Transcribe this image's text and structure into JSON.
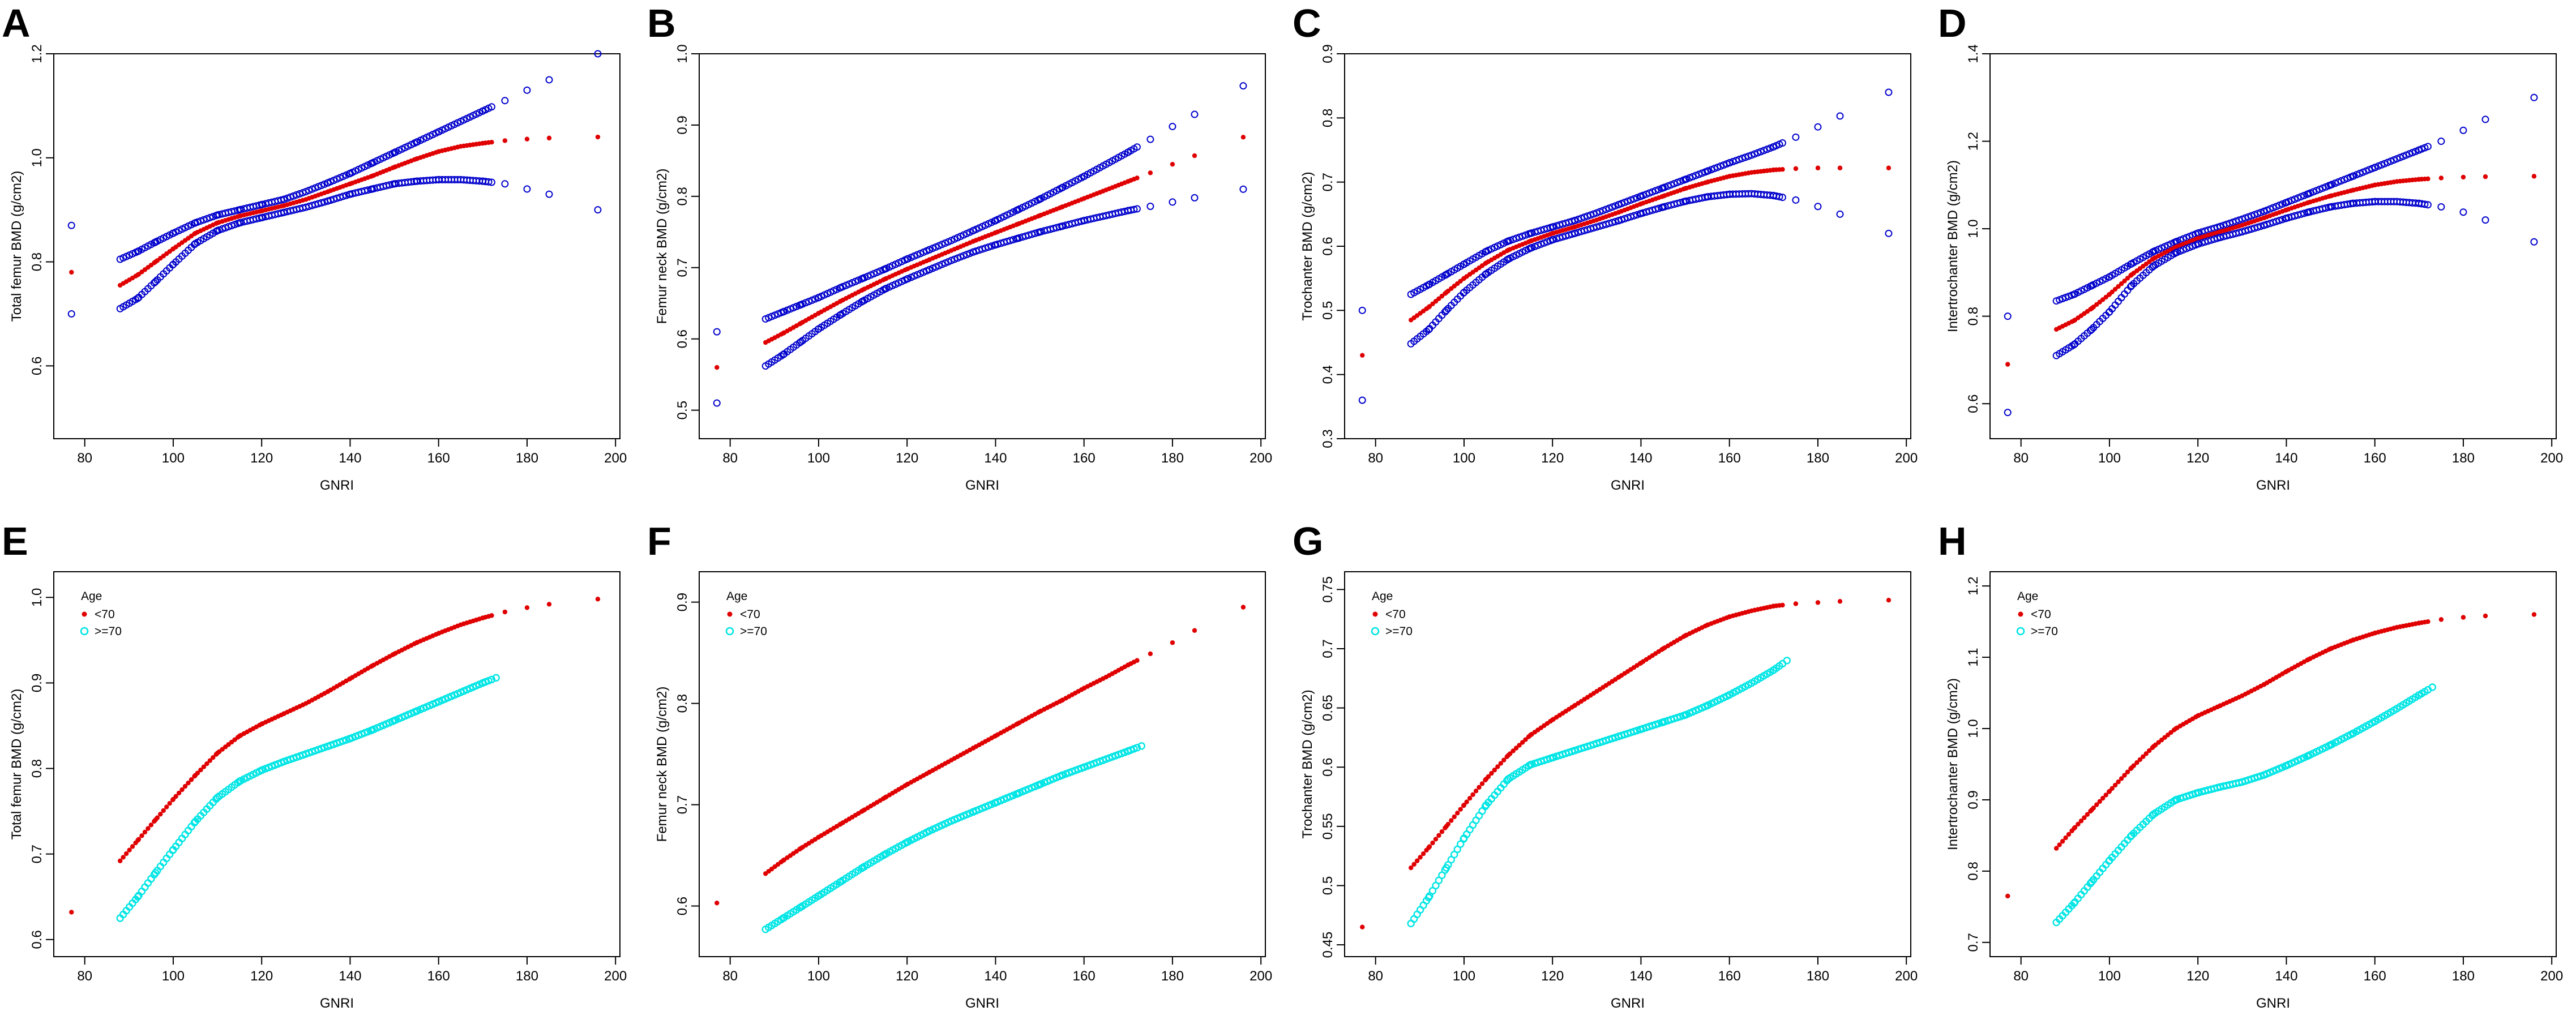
{
  "figure": {
    "panels": [
      "A",
      "B",
      "C",
      "D",
      "E",
      "F",
      "G",
      "H"
    ]
  },
  "colors": {
    "blue": "#0000cc",
    "red": "#e00000",
    "cyan": "#00e5e5",
    "axis": "#000000"
  },
  "chart_data": [
    {
      "panel": "A",
      "type": "scatter",
      "xlabel": "GNRI",
      "ylabel": "Total femur BMD (g/cm2)",
      "xlim": [
        73,
        201
      ],
      "ylim": [
        0.46,
        1.2
      ],
      "xticks": [
        80,
        100,
        120,
        140,
        160,
        180,
        200
      ],
      "yticks": [
        0.6,
        0.8,
        1.0,
        1.2
      ],
      "x": [
        77,
        88,
        92,
        96,
        100,
        105,
        110,
        115,
        120,
        125,
        130,
        135,
        140,
        145,
        150,
        155,
        160,
        165,
        170,
        175,
        180,
        185,
        196
      ],
      "series": [
        {
          "name": "upper",
          "style": "blue-open",
          "values": [
            0.87,
            0.805,
            0.82,
            0.838,
            0.855,
            0.875,
            0.89,
            0.9,
            0.91,
            0.92,
            0.935,
            0.952,
            0.97,
            0.99,
            1.01,
            1.03,
            1.05,
            1.07,
            1.09,
            1.11,
            1.13,
            1.15,
            1.2
          ]
        },
        {
          "name": "fit",
          "style": "red-dot",
          "values": [
            0.78,
            0.755,
            0.775,
            0.8,
            0.825,
            0.855,
            0.875,
            0.888,
            0.898,
            0.908,
            0.92,
            0.935,
            0.95,
            0.965,
            0.982,
            0.998,
            1.012,
            1.022,
            1.028,
            1.033,
            1.036,
            1.038,
            1.04
          ]
        },
        {
          "name": "lower",
          "style": "blue-open",
          "values": [
            0.7,
            0.71,
            0.73,
            0.762,
            0.795,
            0.835,
            0.86,
            0.875,
            0.885,
            0.895,
            0.905,
            0.917,
            0.93,
            0.94,
            0.95,
            0.955,
            0.958,
            0.958,
            0.955,
            0.95,
            0.94,
            0.93,
            0.9
          ]
        }
      ]
    },
    {
      "panel": "B",
      "type": "scatter",
      "xlabel": "GNRI",
      "ylabel": "Femur neck BMD (g/cm2)",
      "xlim": [
        73,
        201
      ],
      "ylim": [
        0.46,
        1.0
      ],
      "xticks": [
        80,
        100,
        120,
        140,
        160,
        180,
        200
      ],
      "yticks": [
        0.5,
        0.6,
        0.7,
        0.8,
        0.9,
        1.0
      ],
      "x": [
        77,
        88,
        92,
        96,
        100,
        105,
        110,
        115,
        120,
        125,
        130,
        135,
        140,
        145,
        150,
        155,
        160,
        165,
        170,
        175,
        180,
        185,
        196
      ],
      "series": [
        {
          "name": "upper",
          "style": "blue-open",
          "values": [
            0.61,
            0.628,
            0.638,
            0.648,
            0.658,
            0.672,
            0.685,
            0.698,
            0.712,
            0.725,
            0.738,
            0.752,
            0.766,
            0.781,
            0.796,
            0.812,
            0.828,
            0.845,
            0.862,
            0.88,
            0.898,
            0.915,
            0.955
          ]
        },
        {
          "name": "fit",
          "style": "red-dot",
          "values": [
            0.56,
            0.595,
            0.608,
            0.622,
            0.636,
            0.653,
            0.669,
            0.684,
            0.698,
            0.711,
            0.724,
            0.737,
            0.749,
            0.761,
            0.773,
            0.785,
            0.797,
            0.809,
            0.821,
            0.833,
            0.845,
            0.857,
            0.883
          ]
        },
        {
          "name": "lower",
          "style": "blue-open",
          "values": [
            0.51,
            0.562,
            0.578,
            0.596,
            0.614,
            0.634,
            0.653,
            0.67,
            0.684,
            0.697,
            0.71,
            0.722,
            0.732,
            0.741,
            0.75,
            0.758,
            0.766,
            0.773,
            0.78,
            0.786,
            0.792,
            0.798,
            0.81
          ]
        }
      ]
    },
    {
      "panel": "C",
      "type": "scatter",
      "xlabel": "GNRI",
      "ylabel": "Trochanter BMD (g/cm2)",
      "xlim": [
        73,
        201
      ],
      "ylim": [
        0.3,
        0.9
      ],
      "xticks": [
        80,
        100,
        120,
        140,
        160,
        180,
        200
      ],
      "yticks": [
        0.3,
        0.4,
        0.5,
        0.6,
        0.7,
        0.8,
        0.9
      ],
      "x": [
        77,
        88,
        92,
        96,
        100,
        105,
        110,
        115,
        120,
        125,
        130,
        135,
        140,
        145,
        150,
        155,
        160,
        165,
        170,
        175,
        180,
        185,
        196
      ],
      "series": [
        {
          "name": "upper",
          "style": "blue-open",
          "values": [
            0.5,
            0.525,
            0.54,
            0.556,
            0.572,
            0.592,
            0.608,
            0.62,
            0.63,
            0.64,
            0.652,
            0.665,
            0.678,
            0.691,
            0.704,
            0.717,
            0.73,
            0.742,
            0.755,
            0.77,
            0.786,
            0.803,
            0.84
          ]
        },
        {
          "name": "fit",
          "style": "red-dot",
          "values": [
            0.43,
            0.485,
            0.505,
            0.528,
            0.55,
            0.574,
            0.594,
            0.608,
            0.62,
            0.63,
            0.641,
            0.653,
            0.666,
            0.678,
            0.69,
            0.7,
            0.709,
            0.715,
            0.719,
            0.721,
            0.722,
            0.722,
            0.722
          ]
        },
        {
          "name": "lower",
          "style": "blue-open",
          "values": [
            0.36,
            0.448,
            0.47,
            0.5,
            0.528,
            0.557,
            0.58,
            0.597,
            0.61,
            0.62,
            0.63,
            0.64,
            0.651,
            0.661,
            0.67,
            0.677,
            0.681,
            0.682,
            0.679,
            0.672,
            0.662,
            0.65,
            0.62
          ]
        }
      ]
    },
    {
      "panel": "D",
      "type": "scatter",
      "xlabel": "GNRI",
      "ylabel": "Intertrochanter BMD (g/cm2)",
      "xlim": [
        73,
        201
      ],
      "ylim": [
        0.52,
        1.4
      ],
      "xticks": [
        80,
        100,
        120,
        140,
        160,
        180,
        200
      ],
      "yticks": [
        0.6,
        0.8,
        1.0,
        1.2,
        1.4
      ],
      "x": [
        77,
        88,
        92,
        96,
        100,
        105,
        110,
        115,
        120,
        125,
        130,
        135,
        140,
        145,
        150,
        155,
        160,
        165,
        170,
        175,
        180,
        185,
        196
      ],
      "series": [
        {
          "name": "upper",
          "style": "blue-open",
          "values": [
            0.8,
            0.835,
            0.85,
            0.87,
            0.89,
            0.92,
            0.948,
            0.97,
            0.99,
            1.005,
            1.022,
            1.04,
            1.06,
            1.08,
            1.1,
            1.12,
            1.14,
            1.16,
            1.18,
            1.2,
            1.225,
            1.25,
            1.3
          ]
        },
        {
          "name": "fit",
          "style": "red-dot",
          "values": [
            0.69,
            0.77,
            0.79,
            0.818,
            0.85,
            0.895,
            0.932,
            0.958,
            0.978,
            0.993,
            1.008,
            1.025,
            1.043,
            1.06,
            1.075,
            1.088,
            1.1,
            1.108,
            1.113,
            1.116,
            1.118,
            1.119,
            1.12
          ]
        },
        {
          "name": "lower",
          "style": "blue-open",
          "values": [
            0.58,
            0.71,
            0.735,
            0.77,
            0.81,
            0.87,
            0.915,
            0.945,
            0.965,
            0.98,
            0.993,
            1.008,
            1.024,
            1.038,
            1.05,
            1.058,
            1.062,
            1.062,
            1.058,
            1.05,
            1.038,
            1.02,
            0.97
          ]
        }
      ]
    },
    {
      "panel": "E",
      "type": "scatter",
      "xlabel": "GNRI",
      "ylabel": "Total femur BMD (g/cm2)",
      "xlim": [
        73,
        201
      ],
      "ylim": [
        0.58,
        1.03
      ],
      "xticks": [
        80,
        100,
        120,
        140,
        160,
        180,
        200
      ],
      "yticks": [
        0.6,
        0.7,
        0.8,
        0.9,
        1.0
      ],
      "legend": {
        "title": "Age",
        "entries": [
          "<70",
          ">=70"
        ],
        "position": "top-left"
      },
      "series": [
        {
          "name": "<70",
          "style": "red-dot",
          "x": [
            77,
            88,
            92,
            96,
            100,
            105,
            110,
            115,
            120,
            125,
            130,
            135,
            140,
            145,
            150,
            155,
            160,
            165,
            170,
            175,
            180,
            185,
            196
          ],
          "values": [
            0.632,
            0.692,
            0.716,
            0.74,
            0.764,
            0.792,
            0.818,
            0.838,
            0.852,
            0.864,
            0.876,
            0.89,
            0.905,
            0.92,
            0.934,
            0.947,
            0.958,
            0.968,
            0.976,
            0.983,
            0.988,
            0.992,
            0.998
          ]
        },
        {
          "name": ">=70",
          "style": "cyan-open",
          "x": [
            88,
            92,
            96,
            100,
            105,
            110,
            115,
            120,
            125,
            130,
            135,
            140,
            145,
            150,
            155,
            160,
            165,
            170,
            173
          ],
          "values": [
            0.625,
            0.65,
            0.678,
            0.705,
            0.738,
            0.766,
            0.785,
            0.798,
            0.808,
            0.817,
            0.826,
            0.835,
            0.845,
            0.856,
            0.867,
            0.878,
            0.889,
            0.9,
            0.906
          ]
        }
      ]
    },
    {
      "panel": "F",
      "type": "scatter",
      "xlabel": "GNRI",
      "ylabel": "Femur neck BMD (g/cm2)",
      "xlim": [
        73,
        201
      ],
      "ylim": [
        0.55,
        0.93
      ],
      "xticks": [
        80,
        100,
        120,
        140,
        160,
        180,
        200
      ],
      "yticks": [
        0.6,
        0.7,
        0.8,
        0.9
      ],
      "legend": {
        "title": "Age",
        "entries": [
          "<70",
          ">=70"
        ],
        "position": "top-left"
      },
      "series": [
        {
          "name": "<70",
          "style": "red-dot",
          "x": [
            77,
            88,
            92,
            96,
            100,
            105,
            110,
            115,
            120,
            125,
            130,
            135,
            140,
            145,
            150,
            155,
            160,
            165,
            170,
            175,
            180,
            185,
            196
          ],
          "values": [
            0.603,
            0.632,
            0.645,
            0.657,
            0.668,
            0.681,
            0.694,
            0.707,
            0.72,
            0.732,
            0.744,
            0.756,
            0.768,
            0.78,
            0.792,
            0.803,
            0.815,
            0.826,
            0.838,
            0.849,
            0.86,
            0.872,
            0.895
          ]
        },
        {
          "name": ">=70",
          "style": "cyan-open",
          "x": [
            88,
            92,
            96,
            100,
            105,
            110,
            115,
            120,
            125,
            130,
            135,
            140,
            145,
            150,
            155,
            160,
            165,
            170,
            173
          ],
          "values": [
            0.577,
            0.588,
            0.599,
            0.61,
            0.624,
            0.638,
            0.651,
            0.663,
            0.674,
            0.684,
            0.693,
            0.702,
            0.711,
            0.72,
            0.729,
            0.737,
            0.745,
            0.753,
            0.758
          ]
        }
      ]
    },
    {
      "panel": "G",
      "type": "scatter",
      "xlabel": "GNRI",
      "ylabel": "Trochanter BMD (g/cm2)",
      "xlim": [
        73,
        201
      ],
      "ylim": [
        0.44,
        0.765
      ],
      "xticks": [
        80,
        100,
        120,
        140,
        160,
        180,
        200
      ],
      "yticks": [
        0.45,
        0.5,
        0.55,
        0.6,
        0.65,
        0.7,
        0.75
      ],
      "legend": {
        "title": "Age",
        "entries": [
          "<70",
          ">=70"
        ],
        "position": "top-left"
      },
      "series": [
        {
          "name": "<70",
          "style": "red-dot",
          "x": [
            77,
            88,
            92,
            96,
            100,
            105,
            110,
            115,
            120,
            125,
            130,
            135,
            140,
            145,
            150,
            155,
            160,
            165,
            170,
            175,
            180,
            185,
            196
          ],
          "values": [
            0.465,
            0.515,
            0.532,
            0.55,
            0.568,
            0.59,
            0.61,
            0.627,
            0.64,
            0.652,
            0.664,
            0.676,
            0.688,
            0.7,
            0.711,
            0.72,
            0.727,
            0.732,
            0.736,
            0.738,
            0.739,
            0.74,
            0.741
          ]
        },
        {
          "name": ">=70",
          "style": "cyan-open",
          "x": [
            88,
            92,
            96,
            100,
            105,
            110,
            115,
            120,
            125,
            130,
            135,
            140,
            145,
            150,
            155,
            160,
            165,
            170,
            173
          ],
          "values": [
            0.468,
            0.49,
            0.515,
            0.54,
            0.568,
            0.59,
            0.602,
            0.608,
            0.614,
            0.62,
            0.626,
            0.632,
            0.638,
            0.644,
            0.652,
            0.661,
            0.671,
            0.682,
            0.69
          ]
        }
      ]
    },
    {
      "panel": "H",
      "type": "scatter",
      "xlabel": "GNRI",
      "ylabel": "Intertrochanter BMD (g/cm2)",
      "xlim": [
        73,
        201
      ],
      "ylim": [
        0.68,
        1.22
      ],
      "xticks": [
        80,
        100,
        120,
        140,
        160,
        180,
        200
      ],
      "yticks": [
        0.7,
        0.8,
        0.9,
        1.0,
        1.1,
        1.2
      ],
      "legend": {
        "title": "Age",
        "entries": [
          "<70",
          ">=70"
        ],
        "position": "top-left"
      },
      "series": [
        {
          "name": "<70",
          "style": "red-dot",
          "x": [
            77,
            88,
            92,
            96,
            100,
            105,
            110,
            115,
            120,
            125,
            130,
            135,
            140,
            145,
            150,
            155,
            160,
            165,
            170,
            175,
            180,
            185,
            196
          ],
          "values": [
            0.765,
            0.832,
            0.86,
            0.886,
            0.912,
            0.945,
            0.975,
            1.0,
            1.018,
            1.032,
            1.046,
            1.062,
            1.08,
            1.097,
            1.112,
            1.124,
            1.134,
            1.142,
            1.148,
            1.153,
            1.156,
            1.158,
            1.16
          ]
        },
        {
          "name": ">=70",
          "style": "cyan-open",
          "x": [
            88,
            92,
            96,
            100,
            105,
            110,
            115,
            120,
            125,
            130,
            135,
            140,
            145,
            150,
            155,
            160,
            165,
            170,
            173
          ],
          "values": [
            0.728,
            0.755,
            0.785,
            0.815,
            0.85,
            0.88,
            0.9,
            0.91,
            0.918,
            0.925,
            0.935,
            0.948,
            0.962,
            0.977,
            0.993,
            1.01,
            1.028,
            1.047,
            1.058
          ]
        }
      ]
    }
  ]
}
